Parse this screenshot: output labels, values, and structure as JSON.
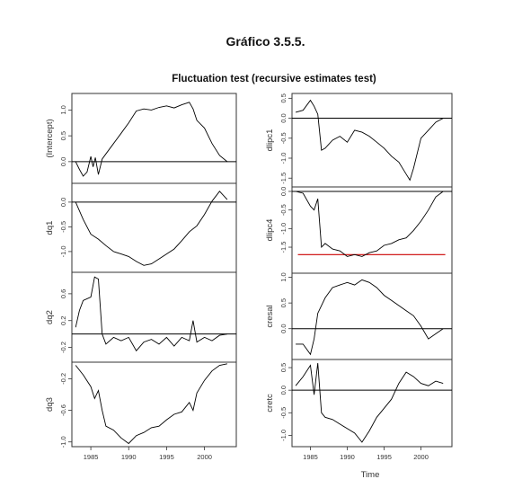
{
  "figure_title": "Gráfico 3.5.5.",
  "chart_data": {
    "type": "line",
    "title": "Fluctuation test (recursive estimates test)",
    "xlabel": "Time",
    "x_ticks": [
      1985,
      1990,
      1995,
      2000
    ],
    "xlim": [
      1982.5,
      2004.2
    ],
    "grid": false,
    "colors": {
      "series": "#000000",
      "boundary": "#cc0000",
      "frame": "#333333"
    },
    "panels": [
      {
        "column": "left",
        "ylabel": "(Intercept)",
        "ylim": [
          -0.42,
          1.32
        ],
        "y_ticks": [
          0.0,
          0.5,
          1.0
        ],
        "y_tick_labels": [
          "0.0",
          "0.5",
          "1.0"
        ],
        "reference_lines": [
          0.0
        ],
        "x": [
          1983.0,
          1983.5,
          1984.0,
          1984.5,
          1985.0,
          1985.3,
          1985.6,
          1986.0,
          1986.5,
          1987.0,
          1988.0,
          1989.0,
          1990.0,
          1991.0,
          1992.0,
          1993.0,
          1994.0,
          1995.0,
          1996.0,
          1997.0,
          1998.0,
          1998.5,
          1999.0,
          2000.0,
          2001.0,
          2002.0,
          2003.0
        ],
        "y": [
          0.0,
          -0.15,
          -0.28,
          -0.2,
          0.1,
          -0.1,
          0.08,
          -0.25,
          0.05,
          0.15,
          0.35,
          0.55,
          0.75,
          0.98,
          1.02,
          1.0,
          1.05,
          1.08,
          1.04,
          1.1,
          1.15,
          1.02,
          0.8,
          0.65,
          0.35,
          0.12,
          0.0
        ]
      },
      {
        "column": "left",
        "ylabel": "dq1",
        "ylim": [
          -1.42,
          0.38
        ],
        "y_ticks": [
          0.0,
          -0.5,
          -1.0
        ],
        "y_tick_labels": [
          "0.0",
          "-0.5",
          "-1.0"
        ],
        "reference_lines": [
          0.0
        ],
        "x": [
          1983.0,
          1984.0,
          1985.0,
          1986.0,
          1987.0,
          1988.0,
          1989.0,
          1990.0,
          1991.0,
          1992.0,
          1993.0,
          1994.0,
          1995.0,
          1996.0,
          1997.0,
          1998.0,
          1999.0,
          2000.0,
          2001.0,
          2002.0,
          2003.0
        ],
        "y": [
          0.0,
          -0.35,
          -0.65,
          -0.75,
          -0.88,
          -1.0,
          -1.05,
          -1.1,
          -1.2,
          -1.28,
          -1.25,
          -1.15,
          -1.05,
          -0.95,
          -0.78,
          -0.6,
          -0.48,
          -0.25,
          0.02,
          0.22,
          0.05
        ]
      },
      {
        "column": "left",
        "ylabel": "dq2",
        "ylim": [
          -0.42,
          0.92
        ],
        "y_ticks": [
          -0.2,
          0.2,
          0.6
        ],
        "y_tick_labels": [
          "-0.2",
          "0.2",
          "0.6"
        ],
        "reference_lines": [
          0.0
        ],
        "x": [
          1983.0,
          1983.5,
          1984.0,
          1985.0,
          1985.5,
          1986.0,
          1986.5,
          1987.0,
          1988.0,
          1989.0,
          1990.0,
          1991.0,
          1992.0,
          1993.0,
          1994.0,
          1995.0,
          1996.0,
          1997.0,
          1998.0,
          1998.5,
          1999.0,
          2000.0,
          2001.0,
          2002.0,
          2003.0
        ],
        "y": [
          0.1,
          0.35,
          0.5,
          0.55,
          0.85,
          0.82,
          0.0,
          -0.15,
          -0.05,
          -0.1,
          -0.05,
          -0.25,
          -0.12,
          -0.08,
          -0.15,
          -0.05,
          -0.18,
          -0.05,
          -0.1,
          0.2,
          -0.12,
          -0.05,
          -0.1,
          -0.02,
          0.0
        ]
      },
      {
        "column": "left",
        "ylabel": "dq3",
        "ylim": [
          -1.06,
          0.01
        ],
        "y_ticks": [
          -0.2,
          -0.6,
          -1.0
        ],
        "y_tick_labels": [
          "-0.2",
          "-0.6",
          "-1.0"
        ],
        "reference_lines": [],
        "x": [
          1983.0,
          1984.0,
          1985.0,
          1985.5,
          1986.0,
          1986.5,
          1987.0,
          1988.0,
          1989.0,
          1990.0,
          1991.0,
          1992.0,
          1993.0,
          1994.0,
          1995.0,
          1996.0,
          1997.0,
          1998.0,
          1998.5,
          1999.0,
          2000.0,
          2001.0,
          2002.0,
          2003.0
        ],
        "y": [
          -0.03,
          -0.15,
          -0.3,
          -0.45,
          -0.35,
          -0.6,
          -0.8,
          -0.85,
          -0.95,
          -1.02,
          -0.92,
          -0.88,
          -0.82,
          -0.8,
          -0.72,
          -0.65,
          -0.62,
          -0.5,
          -0.6,
          -0.38,
          -0.22,
          -0.1,
          -0.03,
          -0.01
        ]
      },
      {
        "column": "right",
        "ylabel": "dlipc1",
        "ylim": [
          -1.72,
          0.62
        ],
        "y_ticks": [
          0.5,
          0.0,
          -0.5,
          -1.0,
          -1.5
        ],
        "y_tick_labels": [
          "0.5",
          "0.0",
          "-0.5",
          "-1.0",
          "-1.5"
        ],
        "reference_lines": [
          0.0
        ],
        "x": [
          1983.0,
          1984.0,
          1985.0,
          1985.5,
          1986.0,
          1986.5,
          1987.0,
          1988.0,
          1989.0,
          1990.0,
          1991.0,
          1992.0,
          1993.0,
          1994.0,
          1995.0,
          1996.0,
          1997.0,
          1998.0,
          1998.5,
          1999.0,
          2000.0,
          2001.0,
          2002.0,
          2003.0
        ],
        "y": [
          0.15,
          0.2,
          0.45,
          0.3,
          0.1,
          -0.8,
          -0.75,
          -0.55,
          -0.45,
          -0.6,
          -0.3,
          -0.35,
          -0.45,
          -0.6,
          -0.75,
          -0.95,
          -1.1,
          -1.4,
          -1.55,
          -1.25,
          -0.5,
          -0.3,
          -0.1,
          0.0
        ]
      },
      {
        "column": "right",
        "ylabel": "dlipc4",
        "ylim": [
          -2.2,
          0.12
        ],
        "y_ticks": [
          0.0,
          -0.5,
          -1.0,
          -1.5
        ],
        "y_tick_labels": [
          "0.0",
          "-0.5",
          "-1.0",
          "-1.5"
        ],
        "reference_lines": [
          0.0
        ],
        "boundary_lines": [
          -1.7
        ],
        "x": [
          1983.0,
          1984.0,
          1985.0,
          1985.5,
          1986.0,
          1986.5,
          1987.0,
          1988.0,
          1989.0,
          1990.0,
          1991.0,
          1992.0,
          1993.0,
          1994.0,
          1995.0,
          1996.0,
          1997.0,
          1998.0,
          1999.0,
          2000.0,
          2001.0,
          2002.0,
          2003.0
        ],
        "y": [
          0.0,
          -0.05,
          -0.4,
          -0.5,
          -0.2,
          -1.5,
          -1.4,
          -1.55,
          -1.6,
          -1.75,
          -1.7,
          -1.75,
          -1.65,
          -1.6,
          -1.45,
          -1.4,
          -1.3,
          -1.25,
          -1.05,
          -0.8,
          -0.5,
          -0.15,
          0.0
        ]
      },
      {
        "column": "right",
        "ylabel": "cresal",
        "ylim": [
          -0.6,
          1.08
        ],
        "y_ticks": [
          1.0,
          0.5,
          0.0
        ],
        "y_tick_labels": [
          "1.0",
          "0.5",
          "0.0"
        ],
        "reference_lines": [
          0.0
        ],
        "x": [
          1983.0,
          1984.0,
          1985.0,
          1985.5,
          1986.0,
          1987.0,
          1988.0,
          1989.0,
          1990.0,
          1991.0,
          1992.0,
          1993.0,
          1994.0,
          1995.0,
          1996.0,
          1997.0,
          1998.0,
          1999.0,
          2000.0,
          2001.0,
          2002.0,
          2003.0
        ],
        "y": [
          -0.3,
          -0.3,
          -0.5,
          -0.2,
          0.3,
          0.6,
          0.8,
          0.85,
          0.9,
          0.85,
          0.95,
          0.9,
          0.8,
          0.65,
          0.55,
          0.45,
          0.35,
          0.25,
          0.05,
          -0.2,
          -0.1,
          0.0
        ]
      },
      {
        "column": "right",
        "ylabel": "cretc",
        "ylim": [
          -1.25,
          0.68
        ],
        "y_ticks": [
          0.5,
          0.0,
          -0.5,
          -1.0
        ],
        "y_tick_labels": [
          "0.5",
          "0.0",
          "-0.5",
          "-1.0"
        ],
        "reference_lines": [
          0.0
        ],
        "x": [
          1983.0,
          1984.0,
          1985.0,
          1985.5,
          1986.0,
          1986.5,
          1987.0,
          1988.0,
          1989.0,
          1990.0,
          1991.0,
          1992.0,
          1993.0,
          1994.0,
          1995.0,
          1996.0,
          1997.0,
          1998.0,
          1999.0,
          2000.0,
          2001.0,
          2002.0,
          2003.0
        ],
        "y": [
          0.1,
          0.3,
          0.55,
          -0.1,
          0.6,
          -0.5,
          -0.6,
          -0.65,
          -0.75,
          -0.85,
          -0.95,
          -1.15,
          -0.9,
          -0.6,
          -0.4,
          -0.2,
          0.15,
          0.4,
          0.3,
          0.15,
          0.1,
          0.2,
          0.15
        ]
      }
    ]
  }
}
